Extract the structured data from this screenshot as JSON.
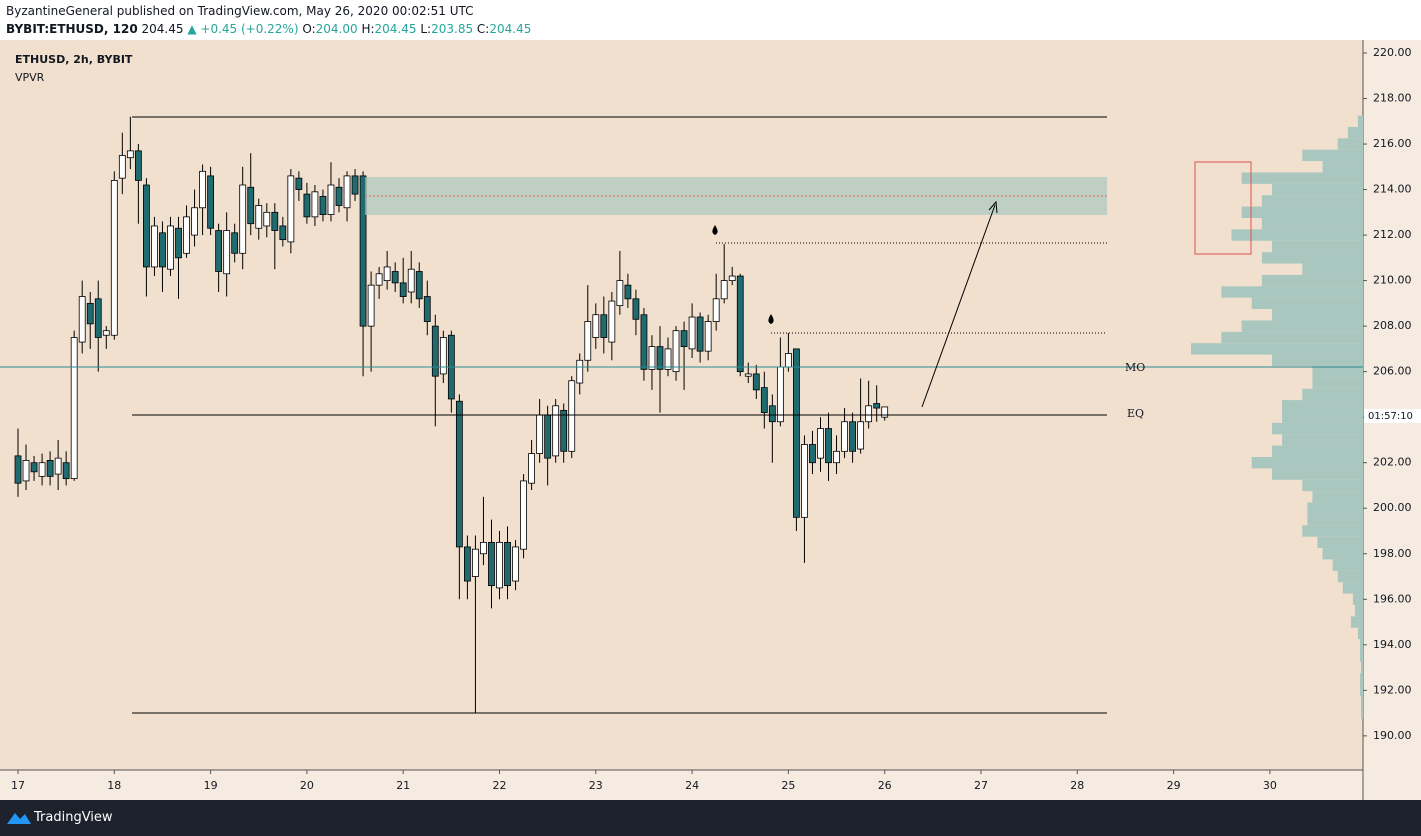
{
  "header": {
    "published": "ByzantineGeneral published on TradingView.com, May 26, 2020 00:02:51 UTC",
    "symbol": "BYBIT:ETHUSD, 120",
    "last": "204.45",
    "change": "▲ +0.45 (+0.22%)",
    "o_label": "O:",
    "o": "204.00",
    "h_label": "H:",
    "h": "204.45",
    "l_label": "L:",
    "l": "203.85",
    "c_label": "C:",
    "c": "204.45"
  },
  "footer": {
    "brand": "TradingView"
  },
  "chart_data": {
    "type": "candlestick",
    "title": "ETHUSD, 2h, BYBIT",
    "subtitle": "VPVR",
    "up_color": "#ffffff",
    "down_color": "#1f6b70",
    "wick_color": "#000000",
    "xlim": [
      16.813,
      30.967
    ],
    "xticks": [
      17,
      18,
      19,
      20,
      21,
      22,
      23,
      24,
      25,
      26,
      27,
      28,
      29,
      30
    ],
    "ylim": [
      188.5,
      220.57
    ],
    "yticks": [
      {
        "value": 190,
        "label": "190.00"
      },
      {
        "value": 192,
        "label": "192.00"
      },
      {
        "value": 194,
        "label": "194.00"
      },
      {
        "value": 196,
        "label": "196.00"
      },
      {
        "value": 198,
        "label": "198.00"
      },
      {
        "value": 200,
        "label": "200.00"
      },
      {
        "value": 202,
        "label": "202.00"
      },
      {
        "value": 204,
        "label": "204.00"
      },
      {
        "value": 206,
        "label": "206.00"
      },
      {
        "value": 208,
        "label": "208.00"
      },
      {
        "value": 210,
        "label": "210.00"
      },
      {
        "value": 212,
        "label": "212.00"
      },
      {
        "value": 214,
        "label": "214.00"
      },
      {
        "value": 216,
        "label": "216.00"
      },
      {
        "value": 218,
        "label": "218.00"
      },
      {
        "value": 220,
        "label": "220.00"
      }
    ],
    "annotations": [
      "MO",
      "EQ"
    ],
    "countdown": "01:57:10",
    "x": [
      17,
      17.0833,
      17.1667,
      17.25,
      17.3333,
      17.4167,
      17.5,
      17.5833,
      17.6667,
      17.75,
      17.8333,
      17.9167,
      18,
      18.0833,
      18.1667,
      18.25,
      18.3333,
      18.4167,
      18.5,
      18.5833,
      18.6667,
      18.75,
      18.8333,
      18.9167,
      19,
      19.0833,
      19.1667,
      19.25,
      19.3333,
      19.4167,
      19.5,
      19.5833,
      19.6667,
      19.75,
      19.8333,
      19.9167,
      20,
      20.0833,
      20.1667,
      20.25,
      20.3333,
      20.4167,
      20.5,
      20.5833,
      20.6667,
      20.75,
      20.8333,
      20.9167,
      21,
      21.0833,
      21.1667,
      21.25,
      21.3333,
      21.4167,
      21.5,
      21.5833,
      21.6667,
      21.75,
      21.8333,
      21.9167,
      22,
      22.0833,
      22.1667,
      22.25,
      22.3333,
      22.4167,
      22.5,
      22.5833,
      22.6667,
      22.75,
      22.8333,
      22.9167,
      23,
      23.0833,
      23.1667,
      23.25,
      23.3333,
      23.4167,
      23.5,
      23.5833,
      23.6667,
      23.75,
      23.8333,
      23.9167,
      24,
      24.0833,
      24.1667,
      24.25,
      24.3333,
      24.4167,
      24.5,
      24.5833,
      24.6667,
      24.75,
      24.8333,
      24.9167,
      25,
      25.0833,
      25.1667,
      25.25,
      25.3333,
      25.4167,
      25.5,
      25.5833,
      25.6667,
      25.75,
      25.8333,
      25.9167,
      26
    ],
    "ohlc": [
      [
        202.3,
        203.5,
        200.5,
        201.1
      ],
      [
        201.2,
        202.8,
        200.8,
        202.1
      ],
      [
        202.0,
        202.3,
        201.2,
        201.6
      ],
      [
        201.4,
        202.4,
        201.0,
        202.0
      ],
      [
        202.1,
        202.5,
        201.0,
        201.4
      ],
      [
        201.5,
        203.0,
        200.8,
        202.2
      ],
      [
        202.0,
        202.5,
        201.0,
        201.3
      ],
      [
        201.3,
        207.8,
        201.2,
        207.5
      ],
      [
        207.3,
        210.0,
        206.8,
        209.3
      ],
      [
        209.0,
        209.5,
        207.0,
        208.1
      ],
      [
        209.2,
        210.0,
        206.0,
        207.5
      ],
      [
        207.6,
        208.0,
        207.0,
        207.8
      ],
      [
        207.6,
        214.8,
        207.4,
        214.4
      ],
      [
        214.5,
        216.5,
        213.8,
        215.5
      ],
      [
        215.4,
        217.2,
        214.9,
        215.7
      ],
      [
        215.7,
        216.0,
        212.5,
        214.4
      ],
      [
        214.2,
        214.5,
        209.3,
        210.6
      ],
      [
        210.6,
        212.8,
        210.2,
        212.4
      ],
      [
        212.1,
        212.6,
        209.5,
        210.6
      ],
      [
        210.5,
        212.8,
        210.2,
        212.4
      ],
      [
        212.3,
        212.8,
        209.2,
        211.0
      ],
      [
        211.2,
        213.3,
        211.0,
        212.8
      ],
      [
        212.0,
        214.0,
        211.5,
        213.2
      ],
      [
        213.2,
        215.1,
        212.0,
        214.8
      ],
      [
        214.6,
        215.0,
        212.0,
        212.3
      ],
      [
        212.2,
        212.5,
        209.5,
        210.4
      ],
      [
        210.3,
        213.0,
        209.3,
        212.2
      ],
      [
        212.1,
        212.5,
        210.8,
        211.2
      ],
      [
        211.2,
        215.0,
        210.5,
        214.2
      ],
      [
        214.1,
        215.6,
        212.0,
        212.5
      ],
      [
        212.3,
        213.6,
        211.8,
        213.3
      ],
      [
        212.4,
        213.4,
        211.9,
        213.0
      ],
      [
        213.0,
        213.4,
        210.5,
        212.2
      ],
      [
        212.4,
        212.8,
        211.5,
        211.8
      ],
      [
        211.7,
        214.9,
        211.2,
        214.6
      ],
      [
        214.5,
        214.8,
        213.5,
        214.0
      ],
      [
        213.8,
        214.3,
        212.5,
        212.8
      ],
      [
        212.8,
        214.2,
        212.4,
        213.9
      ],
      [
        213.7,
        214.0,
        212.6,
        212.9
      ],
      [
        212.9,
        215.2,
        212.6,
        214.2
      ],
      [
        214.1,
        214.5,
        213.0,
        213.3
      ],
      [
        213.2,
        214.8,
        212.6,
        214.6
      ],
      [
        214.6,
        214.9,
        213.5,
        213.8
      ],
      [
        214.6,
        214.8,
        205.8,
        208.0
      ],
      [
        208.0,
        210.4,
        206.0,
        209.8
      ],
      [
        209.8,
        210.6,
        209.2,
        210.3
      ],
      [
        210.0,
        211.3,
        209.6,
        210.6
      ],
      [
        210.4,
        210.8,
        209.5,
        209.9
      ],
      [
        209.9,
        211.0,
        209.0,
        209.3
      ],
      [
        209.5,
        211.3,
        209.0,
        210.5
      ],
      [
        210.4,
        210.8,
        208.8,
        209.2
      ],
      [
        209.3,
        210.0,
        207.6,
        208.2
      ],
      [
        208.0,
        208.5,
        203.6,
        205.8
      ],
      [
        205.9,
        207.8,
        205.5,
        207.5
      ],
      [
        207.6,
        207.8,
        204.2,
        204.8
      ],
      [
        204.7,
        205.0,
        196.0,
        198.3
      ],
      [
        198.3,
        198.8,
        196.0,
        196.8
      ],
      [
        197.0,
        198.8,
        191.0,
        198.2
      ],
      [
        198.0,
        200.5,
        197.5,
        198.5
      ],
      [
        198.5,
        199.5,
        195.6,
        196.6
      ],
      [
        196.5,
        199.0,
        196.0,
        198.5
      ],
      [
        198.5,
        199.2,
        196.0,
        196.6
      ],
      [
        196.8,
        198.6,
        196.4,
        198.3
      ],
      [
        198.2,
        201.5,
        197.8,
        201.2
      ],
      [
        201.1,
        203.0,
        200.8,
        202.4
      ],
      [
        202.4,
        204.8,
        202.0,
        204.1
      ],
      [
        204.1,
        204.5,
        201.0,
        202.2
      ],
      [
        202.3,
        204.8,
        202.0,
        204.5
      ],
      [
        204.3,
        204.6,
        202.0,
        202.5
      ],
      [
        202.5,
        205.8,
        202.2,
        205.6
      ],
      [
        205.5,
        206.8,
        205.0,
        206.5
      ],
      [
        206.5,
        209.8,
        206.0,
        208.2
      ],
      [
        207.5,
        209.0,
        207.0,
        208.5
      ],
      [
        208.5,
        209.3,
        206.8,
        207.5
      ],
      [
        207.3,
        209.5,
        206.5,
        209.1
      ],
      [
        208.9,
        211.3,
        208.5,
        210.0
      ],
      [
        209.8,
        210.3,
        208.8,
        209.2
      ],
      [
        209.2,
        209.6,
        207.6,
        208.3
      ],
      [
        208.5,
        208.8,
        205.6,
        206.1
      ],
      [
        206.1,
        207.6,
        205.2,
        207.1
      ],
      [
        207.1,
        208.0,
        204.2,
        206.1
      ],
      [
        206.1,
        207.5,
        205.8,
        207.0
      ],
      [
        206.0,
        208.0,
        205.6,
        207.8
      ],
      [
        207.8,
        208.2,
        205.2,
        207.1
      ],
      [
        207.0,
        209.0,
        206.6,
        208.4
      ],
      [
        208.4,
        208.6,
        206.4,
        206.9
      ],
      [
        206.9,
        208.5,
        206.5,
        208.2
      ],
      [
        208.2,
        210.3,
        207.8,
        209.2
      ],
      [
        209.2,
        211.6,
        209.0,
        210.0
      ],
      [
        210.0,
        210.6,
        209.8,
        210.2
      ],
      [
        210.2,
        210.3,
        205.8,
        206.0
      ],
      [
        205.8,
        206.4,
        205.5,
        205.9
      ],
      [
        205.9,
        206.3,
        204.8,
        205.2
      ],
      [
        205.3,
        206.0,
        203.5,
        204.2
      ],
      [
        204.5,
        205.0,
        202.0,
        203.8
      ],
      [
        203.8,
        207.5,
        203.6,
        206.2
      ],
      [
        206.2,
        207.7,
        206.0,
        206.8
      ],
      [
        207.0,
        207.0,
        199.0,
        199.6
      ],
      [
        199.6,
        203.2,
        197.6,
        202.8
      ],
      [
        202.8,
        203.4,
        201.5,
        202.0
      ],
      [
        202.2,
        204.0,
        201.6,
        203.5
      ],
      [
        203.5,
        204.2,
        201.2,
        202.0
      ],
      [
        202.0,
        203.2,
        201.5,
        202.5
      ],
      [
        202.5,
        204.4,
        202.2,
        203.8
      ],
      [
        203.8,
        204.2,
        202.0,
        202.5
      ],
      [
        202.6,
        205.7,
        202.4,
        203.8
      ],
      [
        203.8,
        205.6,
        203.5,
        204.5
      ],
      [
        204.6,
        205.4,
        203.8,
        204.4
      ],
      [
        204.0,
        204.45,
        203.85,
        204.45
      ]
    ],
    "volume_profile": {
      "color": "#a9c7bf",
      "prices": [
        191,
        191.5,
        192,
        192.5,
        193,
        193.5,
        194,
        194.5,
        195,
        195.5,
        196,
        196.5,
        197,
        197.5,
        198,
        198.5,
        199,
        199.5,
        200,
        200.5,
        201,
        201.5,
        202,
        202.5,
        203,
        203.5,
        204,
        204.5,
        205,
        205.5,
        206,
        206.5,
        207,
        207.5,
        208,
        208.5,
        209,
        209.5,
        210,
        210.5,
        211,
        211.5,
        212,
        212.5,
        213,
        213.5,
        214,
        214.5,
        215,
        215.5,
        216,
        216.5,
        217
      ],
      "values": [
        2,
        2,
        3,
        3,
        2,
        3,
        3,
        5,
        12,
        8,
        10,
        20,
        25,
        30,
        40,
        45,
        60,
        55,
        55,
        50,
        60,
        90,
        110,
        90,
        80,
        90,
        80,
        80,
        60,
        50,
        50,
        90,
        170,
        140,
        120,
        90,
        110,
        140,
        100,
        60,
        100,
        90,
        130,
        100,
        120,
        100,
        90,
        120,
        40,
        60,
        25,
        15,
        5
      ]
    }
  }
}
